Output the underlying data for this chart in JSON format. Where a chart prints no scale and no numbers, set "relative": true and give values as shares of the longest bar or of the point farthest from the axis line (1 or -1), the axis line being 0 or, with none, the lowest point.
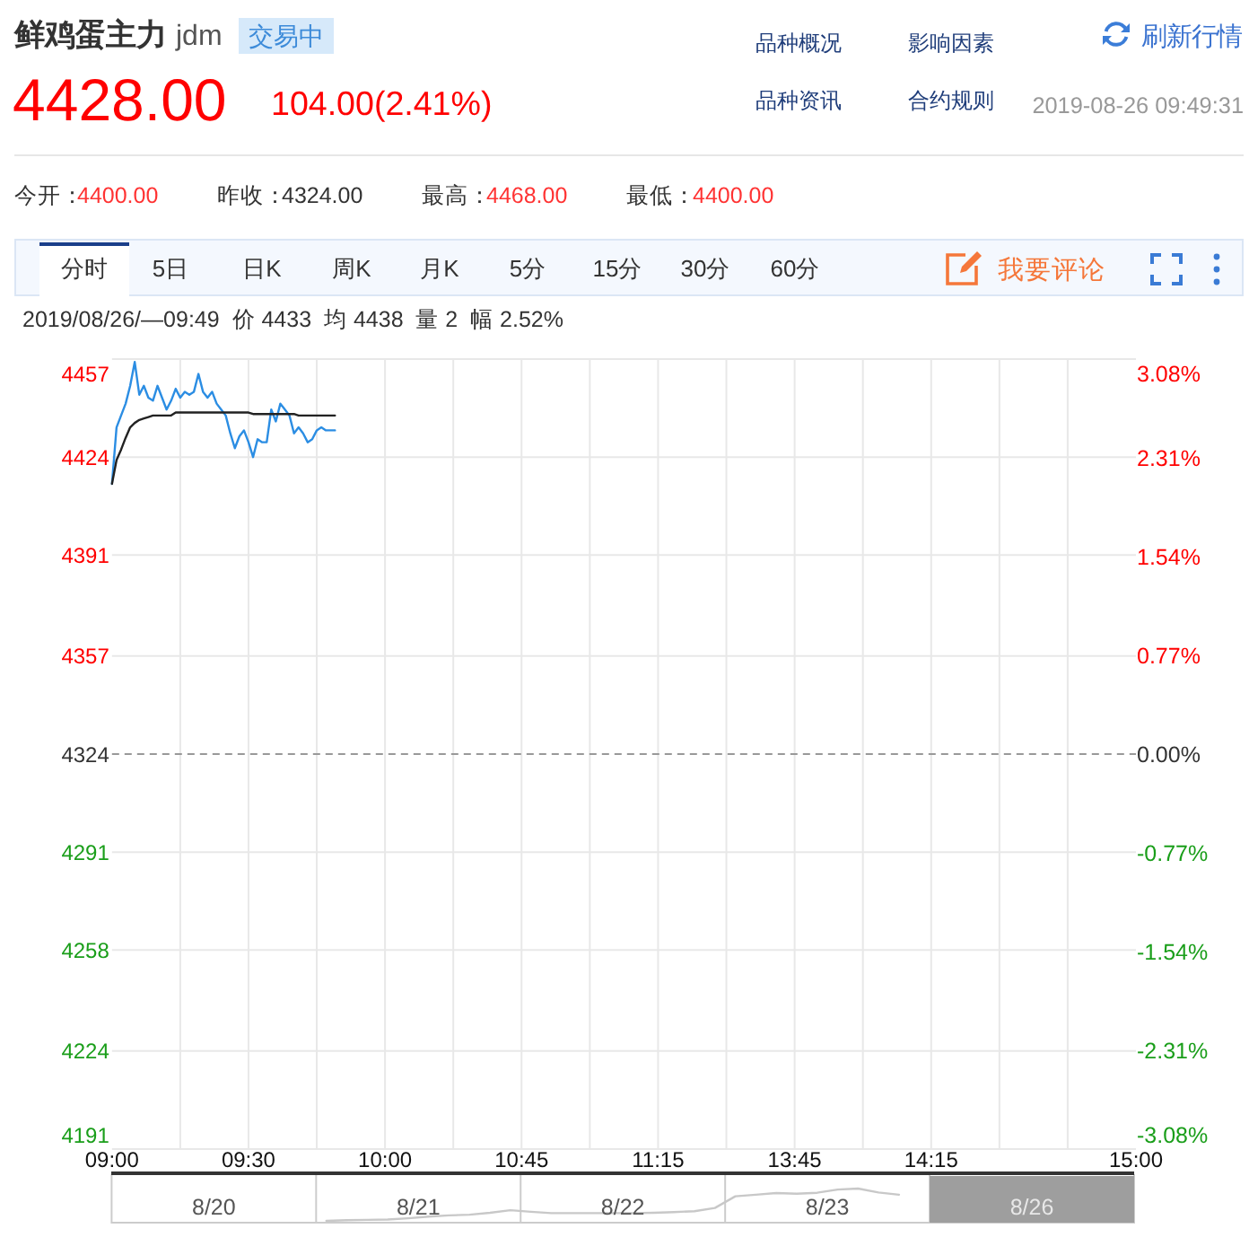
{
  "chart_data": [
    {
      "type": "line",
      "title": "鲜鸡蛋主力",
      "subtitle": "jdm",
      "annotations": [
        "交易中",
        "4428.00",
        "104.00(2.41%)",
        "品种概况",
        "影响因素",
        "刷新行情",
        "品种资讯",
        "合约规则",
        "2019-08-26 09:49:31",
        "今开：",
        "4400.00",
        "昨收：",
        "4324.00",
        "最高：",
        "4468.00",
        "最低：",
        "4400.00",
        "分时",
        "5日",
        "日K",
        "周K",
        "月K",
        "5分",
        "15分",
        "30分",
        "60分",
        "我要评论",
        "2019/08/26/—09:49  价 4433  均 4438  量 2  幅 2.52%"
      ],
      "categories": [
        "09:00",
        null,
        null,
        null,
        null,
        null,
        null,
        null,
        null,
        null,
        null,
        null,
        null,
        null,
        null,
        null,
        null,
        null,
        null,
        null,
        null,
        null,
        null,
        null,
        null,
        null,
        null,
        null,
        null,
        null,
        "09:30",
        null,
        null,
        null,
        null,
        null,
        null,
        null,
        null,
        null,
        null,
        null,
        null,
        null,
        null,
        null,
        null,
        null,
        null,
        null,
        null,
        null,
        null,
        null,
        null,
        null,
        null,
        null,
        null,
        null,
        "10:00",
        null,
        null,
        null,
        null,
        null,
        null,
        null,
        null,
        null,
        null,
        null,
        null,
        null,
        null,
        null,
        null,
        null,
        null,
        null,
        null,
        null,
        null,
        null,
        null,
        null,
        null,
        null,
        null,
        null,
        "10:45",
        null,
        null,
        null,
        null,
        null,
        null,
        null,
        null,
        null,
        null,
        null,
        null,
        null,
        null,
        null,
        null,
        null,
        null,
        null,
        null,
        null,
        null,
        null,
        null,
        null,
        null,
        null,
        null,
        null,
        "11:15",
        null,
        null,
        null,
        null,
        null,
        null,
        null,
        null,
        null,
        null,
        null,
        null,
        null,
        null,
        null,
        null,
        null,
        null,
        null,
        null,
        null,
        null,
        null,
        null,
        null,
        null,
        null,
        null,
        null,
        "13:45",
        null,
        null,
        null,
        null,
        null,
        null,
        null,
        null,
        null,
        null,
        null,
        null,
        null,
        null,
        null,
        null,
        null,
        null,
        null,
        null,
        null,
        null,
        null,
        null,
        null,
        null,
        null,
        null,
        null,
        "14:15",
        null,
        null,
        null,
        null,
        null,
        null,
        null,
        null,
        null,
        null,
        null,
        null,
        null,
        null,
        null,
        null,
        null,
        null,
        null,
        null,
        null,
        null,
        null,
        null,
        null,
        null,
        null,
        null,
        null,
        null,
        null,
        null,
        null,
        null,
        null,
        null,
        null,
        null,
        null,
        null,
        null,
        null,
        null,
        null,
        "15:00"
      ],
      "series": [
        {
          "color": "#2b8de3",
          "values": [
            4415,
            4434,
            4438,
            4442,
            4448,
            4456,
            4445,
            4448,
            4444,
            4443,
            4448,
            4444,
            4440,
            4443,
            4447,
            4444,
            4446,
            4445,
            4446,
            4452,
            4446,
            4444,
            4446,
            4442,
            4440,
            4438,
            4432,
            4427,
            4431,
            4433,
            4429,
            4424,
            4430,
            4429,
            4429,
            4440,
            4436,
            4442,
            4440,
            4438,
            4432,
            4434,
            4432,
            4429,
            4430,
            4433,
            4434,
            4433,
            4433,
            4433,
            null,
            null,
            null,
            null,
            null,
            null,
            null,
            null,
            null,
            null,
            null,
            null,
            null,
            null,
            null,
            null,
            null,
            null,
            null,
            null,
            null,
            null,
            null,
            null,
            null,
            null,
            null,
            null,
            null,
            null,
            null,
            null,
            null,
            null,
            null,
            null,
            null,
            null,
            null,
            null,
            null,
            null,
            null,
            null,
            null,
            null,
            null,
            null,
            null,
            null,
            null,
            null,
            null,
            null,
            null,
            null,
            null,
            null,
            null,
            null,
            null,
            null,
            null,
            null,
            null,
            null,
            null,
            null,
            null,
            null,
            null,
            null,
            null,
            null,
            null,
            null,
            null,
            null,
            null,
            null,
            null,
            null,
            null,
            null,
            null,
            null,
            null,
            null,
            null,
            null,
            null,
            null,
            null,
            null,
            null,
            null,
            null,
            null,
            null,
            null,
            null,
            null,
            null,
            null,
            null,
            null,
            null,
            null,
            null,
            null,
            null,
            null,
            null,
            null,
            null,
            null,
            null,
            null,
            null,
            null,
            null,
            null,
            null,
            null,
            null,
            null,
            null,
            null,
            null,
            null,
            null,
            null,
            null,
            null,
            null,
            null,
            null,
            null,
            null,
            null,
            null,
            null,
            null,
            null,
            null,
            null,
            null,
            null,
            null,
            null,
            null,
            null,
            null,
            null,
            null,
            null,
            null,
            null,
            null,
            null,
            null,
            null,
            null,
            null,
            null,
            null,
            null,
            null,
            null,
            null,
            null,
            null,
            null,
            null,
            null,
            null
          ]
        },
        {
          "color": "#222222",
          "values": [
            4415,
            4423,
            4426.5,
            4430.5,
            4434,
            4435.5,
            4436.5,
            4437,
            4437.5,
            4438,
            4438,
            4438,
            4438,
            4438,
            4439,
            4439,
            4439,
            4439,
            4439,
            4439,
            4439,
            4439,
            4439,
            4439,
            4439,
            4439,
            4439,
            4439,
            4439,
            4439,
            4439,
            4438.5,
            4438.5,
            4438.5,
            4438.5,
            4438.5,
            4438.5,
            4438.5,
            4438.5,
            4438.5,
            4438.5,
            4438,
            4438,
            4438,
            4438,
            4438,
            4438,
            4438,
            4438,
            4438,
            null,
            null,
            null,
            null,
            null,
            null,
            null,
            null,
            null,
            null,
            null,
            null,
            null,
            null,
            null,
            null,
            null,
            null,
            null,
            null,
            null,
            null,
            null,
            null,
            null,
            null,
            null,
            null,
            null,
            null,
            null,
            null,
            null,
            null,
            null,
            null,
            null,
            null,
            null,
            null,
            null,
            null,
            null,
            null,
            null,
            null,
            null,
            null,
            null,
            null,
            null,
            null,
            null,
            null,
            null,
            null,
            null,
            null,
            null,
            null,
            null,
            null,
            null,
            null,
            null,
            null,
            null,
            null,
            null,
            null,
            null,
            null,
            null,
            null,
            null,
            null,
            null,
            null,
            null,
            null,
            null,
            null,
            null,
            null,
            null,
            null,
            null,
            null,
            null,
            null,
            null,
            null,
            null,
            null,
            null,
            null,
            null,
            null,
            null,
            null,
            null,
            null,
            null,
            null,
            null,
            null,
            null,
            null,
            null,
            null,
            null,
            null,
            null,
            null,
            null,
            null,
            null,
            null,
            null,
            null,
            null,
            null,
            null,
            null,
            null,
            null,
            null,
            null,
            null,
            null,
            null,
            null,
            null,
            null,
            null,
            null,
            null,
            null,
            null,
            null,
            null,
            null,
            null,
            null,
            null,
            null,
            null,
            null,
            null,
            null,
            null,
            null,
            null,
            null,
            null,
            null,
            null,
            null,
            null,
            null,
            null,
            null,
            null,
            null,
            null,
            null,
            null,
            null,
            null,
            null,
            null,
            null,
            null,
            null,
            null,
            null
          ]
        }
      ],
      "ylim": [
        4191,
        4457
      ],
      "yticks": [
        4191,
        4224,
        4258,
        4291,
        4324,
        4357,
        4391,
        4424,
        4457
      ],
      "y2lim": [
        -3.08,
        3.08
      ],
      "y2ticks": [
        {
          "value": -3.08,
          "label": "-3.08%"
        },
        {
          "value": -2.31,
          "label": "-2.31%"
        },
        {
          "value": -1.54,
          "label": "-1.54%"
        },
        {
          "value": -0.77,
          "label": "-0.77%"
        },
        {
          "value": 0,
          "label": "0.00%"
        },
        {
          "value": 0.77,
          "label": "0.77%"
        },
        {
          "value": 1.54,
          "label": "1.54%"
        },
        {
          "value": 2.31,
          "label": "2.31%"
        },
        {
          "value": 3.08,
          "label": "3.08%"
        }
      ],
      "grid": true,
      "ref_lines": [
        {
          "axis": "y",
          "value": 4324,
          "color": "#999999",
          "line_style": "dashed"
        }
      ]
    },
    {
      "type": "line",
      "relative": true,
      "color": "#c8c8c8",
      "annotations": [
        "8/20",
        "8/21",
        "8/22",
        "8/23",
        "8/26"
      ],
      "categories": [
        null,
        null,
        null,
        null,
        null,
        null,
        null,
        null,
        null,
        null,
        null,
        null,
        null,
        null,
        null,
        null,
        null,
        null,
        null,
        null,
        null,
        null,
        null,
        null,
        null,
        null,
        null,
        null,
        null,
        null,
        null,
        null,
        null,
        null,
        null,
        null,
        null,
        null,
        null,
        null,
        null,
        null,
        null,
        null,
        null,
        null,
        null,
        null,
        null,
        null
      ],
      "values": [
        null,
        null,
        null,
        null,
        null,
        null,
        null,
        null,
        null,
        null,
        0,
        0.02,
        0.03,
        0.04,
        0.08,
        0.13,
        0.17,
        0.19,
        0.25,
        0.33,
        0.28,
        0.24,
        0.24,
        0.24,
        0.24,
        0.24,
        0.25,
        0.27,
        0.3,
        0.4,
        0.76,
        0.81,
        0.86,
        0.84,
        0.87,
        0.97,
        1,
        0.88,
        0.81,
        null,
        null,
        null,
        null,
        null,
        null,
        null,
        null,
        null,
        null,
        null
      ]
    }
  ]
}
